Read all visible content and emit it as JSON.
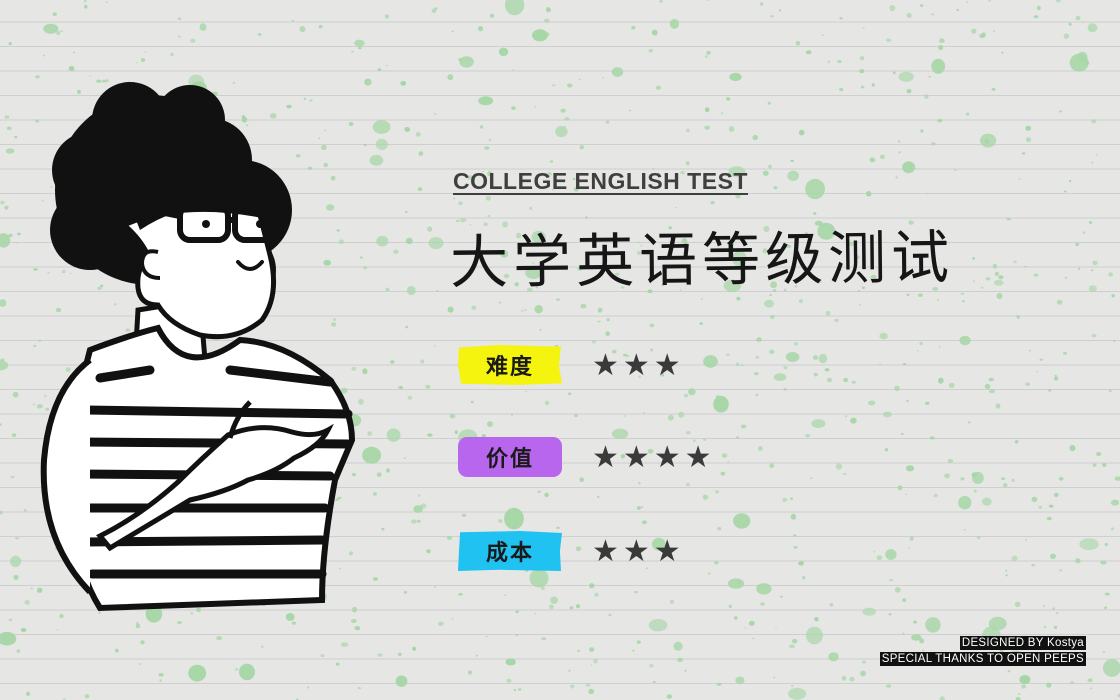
{
  "header": {
    "eyebrow": "COLLEGE ENGLISH TEST",
    "title": "大学英语等级测试"
  },
  "ratings": [
    {
      "label": "难度",
      "stars": "★★★",
      "value": 3,
      "color": "#f4f40e"
    },
    {
      "label": "价值",
      "stars": "★★★★",
      "value": 4,
      "color": "#b866ee"
    },
    {
      "label": "成本",
      "stars": "★★★",
      "value": 3,
      "color": "#1fc2f1"
    }
  ],
  "credits": {
    "designer": "DESIGNED BY Kostya",
    "thanks": "SPECIAL THANKS TO OPEN PEEPS"
  },
  "illustration": "person-with-afro-and-glasses-illustration",
  "colors": {
    "background": "#e6e6e5",
    "speckles": "#a6d6a6",
    "ruled_lines": "#cfcfcf"
  }
}
